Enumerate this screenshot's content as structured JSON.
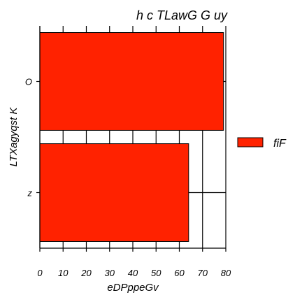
{
  "chart_data": {
    "type": "bar",
    "orientation": "horizontal",
    "title": "h c TLawG G uy",
    "xlabel": "eDPppeGv",
    "ylabel": "LTXagyqst  K",
    "categories": [
      "O",
      "z"
    ],
    "series": [
      {
        "name": "fiF",
        "values": [
          79,
          64
        ]
      }
    ],
    "xlim": [
      0,
      80
    ],
    "xticks": [
      "0",
      "10",
      "20",
      "30",
      "40",
      "50",
      "60",
      "70",
      "80"
    ],
    "grid": "vertical and horizontal lines",
    "legend": "right",
    "colors": {
      "bar": "#ff2200",
      "grid": "#000000",
      "background": "#ffffff"
    }
  }
}
